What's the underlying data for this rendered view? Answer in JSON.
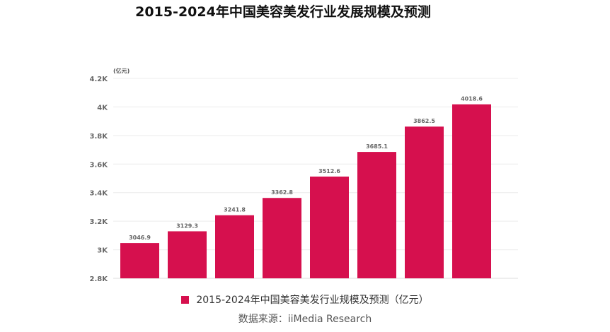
{
  "chart_data": {
    "type": "bar",
    "title": "2015-2024年中国美容美发行业发展规模及预测",
    "unit": "(亿元)",
    "categories": [
      "",
      "",
      "",
      "",
      "",
      "",
      "",
      ""
    ],
    "series": [
      {
        "name": "2015-2024年中国美容美发行业规模及预测（亿元）",
        "values": [
          3046.9,
          3129.3,
          3241.8,
          3362.8,
          3512.6,
          3685.1,
          3862.5,
          4018.6
        ],
        "data_labels": [
          "3046.9",
          "3129.3",
          "3241.8",
          "3362.8",
          "3512.6",
          "3685.1",
          "3862.5",
          "4018.6"
        ],
        "color": "#d6104e"
      }
    ],
    "y_ticks": [
      2800,
      3000,
      3200,
      3400,
      3600,
      3800,
      4000,
      4200
    ],
    "y_tick_labels": [
      "2.8K",
      "3K",
      "3.2K",
      "3.4K",
      "3.6K",
      "3.8K",
      "4K",
      "4.2K"
    ],
    "ylim": [
      2800,
      4200
    ],
    "grid": true,
    "legend": "bottom"
  },
  "source": "数据来源：iiMedia Research"
}
